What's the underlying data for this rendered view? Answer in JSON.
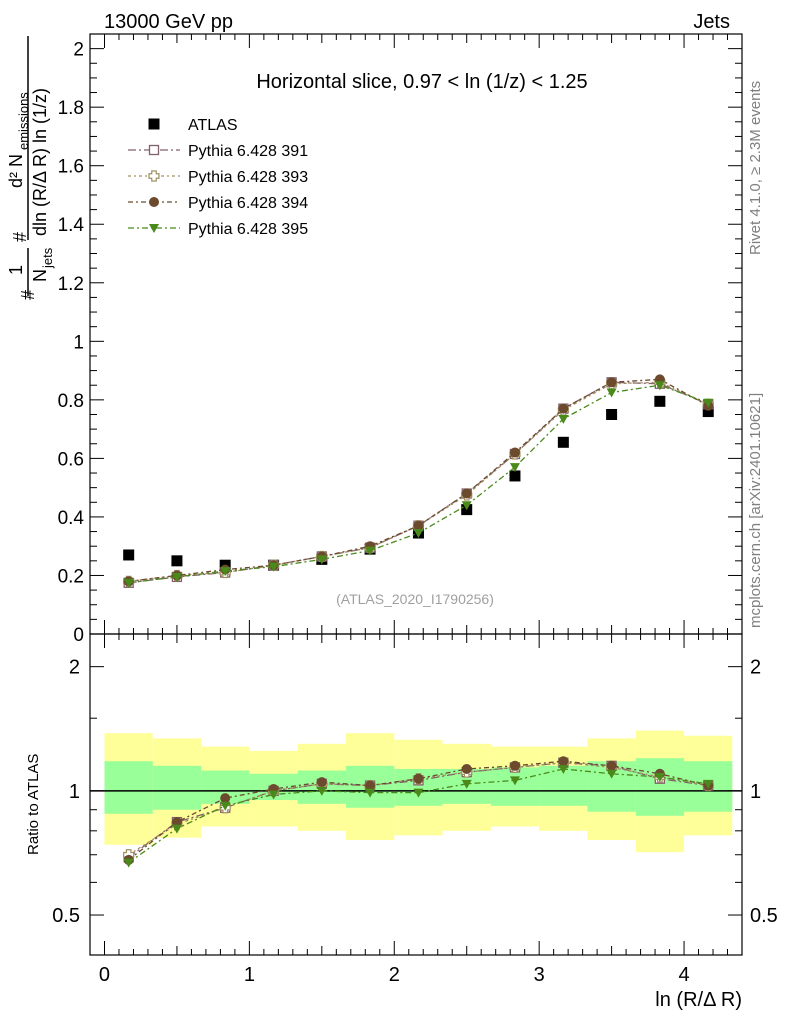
{
  "header": {
    "left": "13000 GeV pp",
    "right": "Jets"
  },
  "side_texts": {
    "rivet": "Rivet 4.1.0, ≥ 2.3M events",
    "mcplots": "mcplots.cern.ch [arXiv:2401.10621]"
  },
  "chart_data": [
    {
      "type": "scatter",
      "title": "Horizontal slice, 0.97 < ln (1/z) < 1.25",
      "watermark": "(ATLAS_2020_I1790256)",
      "ylabel_parts": {
        "frac1_num": "1",
        "frac1_den": "N",
        "frac1_den_sub": "jets",
        "frac2_num": "d² N",
        "frac2_num_sub": "emissions",
        "frac2_den": "dln (R/Δ R) ln (1/z)",
        "hash": "#"
      },
      "xlim": [
        -0.1,
        4.4
      ],
      "ylim": [
        0,
        2.05
      ],
      "yticks": [
        0,
        0.2,
        0.4,
        0.6,
        0.8,
        1,
        1.2,
        1.4,
        1.6,
        1.8,
        2
      ],
      "ytick_labels": [
        "0",
        "0.2",
        "0.4",
        "0.6",
        "0.8",
        "1",
        "1.2",
        "1.4",
        "1.6",
        "1.8",
        "2"
      ],
      "x": [
        0.167,
        0.5,
        0.833,
        1.167,
        1.5,
        1.833,
        2.167,
        2.5,
        2.833,
        3.167,
        3.5,
        3.833,
        4.167
      ],
      "series": [
        {
          "name": "ATLAS",
          "marker": "square",
          "color": "#000000",
          "values": [
            0.27,
            0.25,
            0.235,
            0.235,
            0.255,
            0.29,
            0.345,
            0.425,
            0.54,
            0.655,
            0.75,
            0.795,
            0.76
          ]
        },
        {
          "name": "Pythia 6.428 391",
          "marker": "open-square",
          "color": "#80606b",
          "values": [
            0.175,
            0.195,
            0.21,
            0.235,
            0.265,
            0.295,
            0.37,
            0.48,
            0.615,
            0.77,
            0.86,
            0.855,
            0.785
          ]
        },
        {
          "name": "Pythia 6.428 393",
          "marker": "open-cross",
          "color": "#a09060",
          "values": [
            0.18,
            0.2,
            0.21,
            0.235,
            0.265,
            0.295,
            0.37,
            0.475,
            0.615,
            0.765,
            0.855,
            0.86,
            0.785
          ]
        },
        {
          "name": "Pythia 6.428 394",
          "marker": "circle",
          "color": "#6b4a2e",
          "values": [
            0.18,
            0.2,
            0.22,
            0.235,
            0.265,
            0.3,
            0.37,
            0.48,
            0.62,
            0.77,
            0.86,
            0.87,
            0.78
          ]
        },
        {
          "name": "Pythia 6.428 395",
          "marker": "triangle-down",
          "color": "#4a8a1a",
          "values": [
            0.175,
            0.195,
            0.215,
            0.23,
            0.255,
            0.285,
            0.345,
            0.44,
            0.57,
            0.735,
            0.825,
            0.85,
            0.79
          ]
        }
      ]
    },
    {
      "type": "scatter",
      "ylabel": "Ratio to ATLAS",
      "xlabel": "ln (R/Δ R)",
      "xlim": [
        -0.1,
        4.4
      ],
      "ylim": [
        0.4,
        2.4
      ],
      "yscale": "log",
      "xticks": [
        0,
        1,
        2,
        3,
        4
      ],
      "xtick_labels": [
        "0",
        "1",
        "2",
        "3",
        "4"
      ],
      "yticks": [
        0.5,
        1,
        2
      ],
      "ytick_labels": [
        "0.5",
        "1",
        "2"
      ],
      "x": [
        0.167,
        0.5,
        0.833,
        1.167,
        1.5,
        1.833,
        2.167,
        2.5,
        2.833,
        3.167,
        3.5,
        3.833,
        4.167
      ],
      "bin_edges": [
        0,
        0.333,
        0.667,
        1.0,
        1.333,
        1.667,
        2.0,
        2.333,
        2.667,
        3.0,
        3.333,
        3.667,
        4.0,
        4.333
      ],
      "bands": {
        "yellow_color": "#ffff99",
        "green_color": "#99ff99",
        "yellow_lo": [
          0.74,
          0.77,
          0.82,
          0.82,
          0.8,
          0.76,
          0.78,
          0.8,
          0.82,
          0.8,
          0.76,
          0.71,
          0.78
        ],
        "yellow_hi": [
          1.38,
          1.34,
          1.28,
          1.25,
          1.3,
          1.38,
          1.33,
          1.3,
          1.28,
          1.28,
          1.34,
          1.4,
          1.36
        ],
        "green_lo": [
          0.88,
          0.9,
          0.93,
          0.95,
          0.93,
          0.91,
          0.92,
          0.93,
          0.92,
          0.92,
          0.89,
          0.87,
          0.89
        ],
        "green_hi": [
          1.18,
          1.15,
          1.12,
          1.1,
          1.12,
          1.15,
          1.13,
          1.13,
          1.14,
          1.15,
          1.18,
          1.2,
          1.18
        ]
      },
      "series": [
        {
          "name": "Pythia 6.428 391",
          "marker": "open-square",
          "color": "#80606b",
          "values": [
            0.69,
            0.84,
            0.91,
            1.0,
            1.04,
            1.03,
            1.06,
            1.11,
            1.14,
            1.17,
            1.15,
            1.07,
            1.03
          ]
        },
        {
          "name": "Pythia 6.428 393",
          "marker": "open-cross",
          "color": "#a09060",
          "values": [
            0.7,
            0.83,
            0.91,
            1.0,
            1.04,
            1.03,
            1.07,
            1.11,
            1.14,
            1.17,
            1.14,
            1.08,
            1.03
          ]
        },
        {
          "name": "Pythia 6.428 394",
          "marker": "circle",
          "color": "#6b4a2e",
          "values": [
            0.68,
            0.84,
            0.96,
            1.01,
            1.05,
            1.03,
            1.07,
            1.13,
            1.15,
            1.18,
            1.15,
            1.1,
            1.03
          ]
        },
        {
          "name": "Pythia 6.428 395",
          "marker": "triangle-down",
          "color": "#4a8a1a",
          "values": [
            0.67,
            0.81,
            0.92,
            0.98,
            1.0,
            0.99,
            0.99,
            1.04,
            1.06,
            1.13,
            1.1,
            1.08,
            1.04
          ]
        }
      ]
    }
  ]
}
